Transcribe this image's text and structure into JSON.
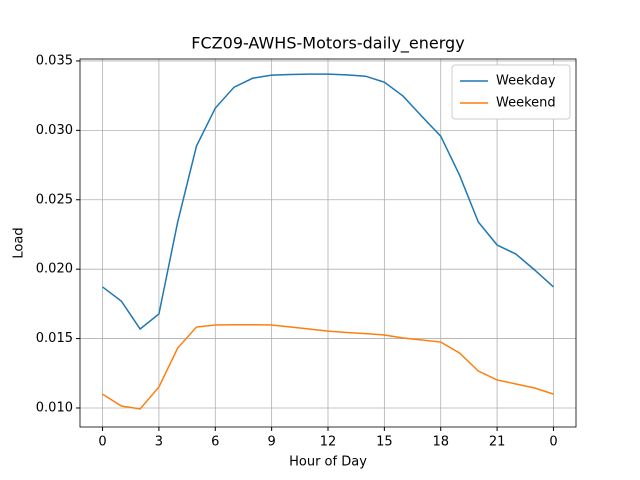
{
  "chart_data": {
    "type": "line",
    "title": "FCZ09-AWHS-Motors-daily_energy",
    "x_label": "Hour of Day",
    "y_label": "Load",
    "x": [
      0,
      1,
      2,
      3,
      4,
      5,
      6,
      7,
      8,
      9,
      10,
      11,
      12,
      13,
      14,
      15,
      16,
      17,
      18,
      19,
      20,
      21,
      22,
      23,
      24
    ],
    "series": [
      {
        "name": "Weekday",
        "color": "#1f77b4",
        "values": [
          0.01872,
          0.0177,
          0.01569,
          0.01677,
          0.0234,
          0.02887,
          0.0316,
          0.03311,
          0.03376,
          0.03398,
          0.03402,
          0.03405,
          0.03405,
          0.034,
          0.0339,
          0.03347,
          0.03246,
          0.031,
          0.02958,
          0.02678,
          0.0234,
          0.02174,
          0.02109,
          0.01994,
          0.01872
        ]
      },
      {
        "name": "Weekend",
        "color": "#ff7f0e",
        "values": [
          0.011,
          0.01014,
          0.00993,
          0.01151,
          0.01432,
          0.01583,
          0.01598,
          0.016,
          0.016,
          0.01598,
          0.01583,
          0.01569,
          0.01554,
          0.01544,
          0.01536,
          0.01526,
          0.01504,
          0.0149,
          0.01475,
          0.01396,
          0.01266,
          0.01202,
          0.01173,
          0.01144,
          0.011
        ]
      }
    ],
    "xlim": [
      -1.2,
      25.2
    ],
    "xticks": [
      0,
      3,
      6,
      9,
      12,
      15,
      18,
      21,
      {
        "value": 24,
        "label": "0"
      }
    ],
    "ylim": [
      0.00863,
      0.03514
    ],
    "yticks": [
      {
        "value": 0.01,
        "label": "0.010"
      },
      0.015,
      {
        "value": 0.02,
        "label": "0.020"
      },
      0.025,
      {
        "value": 0.03,
        "label": "0.030"
      },
      0.035
    ],
    "grid": true,
    "legend": "upper right"
  }
}
